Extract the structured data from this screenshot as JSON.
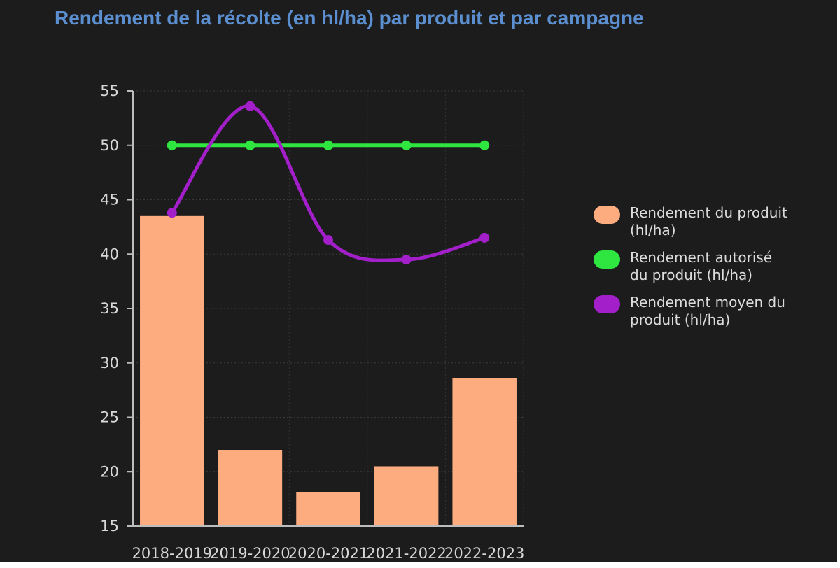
{
  "chart_data": {
    "type": "bar",
    "title": "Rendement de la récolte (en hl/ha) par produit et par campagne",
    "categories": [
      "2018-2019",
      "2019-2020",
      "2020-2021",
      "2021-2022",
      "2022-2023"
    ],
    "ylim": [
      15,
      55
    ],
    "yticks": [
      15,
      20,
      25,
      30,
      35,
      40,
      45,
      50,
      55
    ],
    "xlabel": "",
    "ylabel": "",
    "grid": true,
    "legend_position": "right",
    "series": [
      {
        "name": "Rendement du produit (hl/ha)",
        "type": "bar",
        "color": "#fdac80",
        "values": [
          43.5,
          22.0,
          18.1,
          20.5,
          28.6
        ]
      },
      {
        "name": "Rendement autorisé du produit (hl/ha)",
        "type": "line",
        "color": "#2ee63f",
        "values": [
          50,
          50,
          50,
          50,
          50
        ]
      },
      {
        "name": "Rendement moyen du produit (hl/ha)",
        "type": "smooth-line",
        "color": "#a21fc9",
        "values": [
          43.8,
          53.6,
          41.3,
          39.5,
          41.5
        ]
      }
    ]
  }
}
